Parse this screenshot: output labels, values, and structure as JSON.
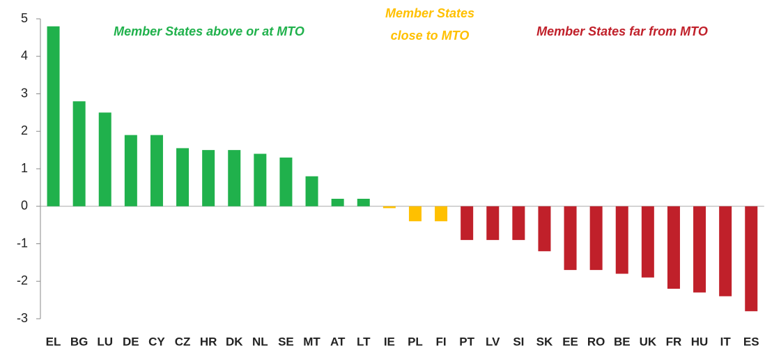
{
  "chart_data": {
    "type": "bar",
    "categories": [
      "EL",
      "BG",
      "LU",
      "DE",
      "CY",
      "CZ",
      "HR",
      "DK",
      "NL",
      "SE",
      "MT",
      "AT",
      "LT",
      "IE",
      "PL",
      "FI",
      "PT",
      "LV",
      "SI",
      "SK",
      "EE",
      "RO",
      "BE",
      "UK",
      "FR",
      "HU",
      "IT",
      "ES"
    ],
    "values": [
      4.8,
      2.8,
      2.5,
      1.9,
      1.9,
      1.55,
      1.5,
      1.5,
      1.4,
      1.3,
      0.8,
      0.2,
      0.2,
      -0.05,
      -0.4,
      -0.4,
      -0.9,
      -0.9,
      -0.9,
      -1.2,
      -1.7,
      -1.7,
      -1.8,
      -1.9,
      -2.2,
      -2.3,
      -2.4,
      -2.8
    ],
    "colors": [
      "#20b14c",
      "#20b14c",
      "#20b14c",
      "#20b14c",
      "#20b14c",
      "#20b14c",
      "#20b14c",
      "#20b14c",
      "#20b14c",
      "#20b14c",
      "#20b14c",
      "#20b14c",
      "#20b14c",
      "#ffc000",
      "#ffc000",
      "#ffc000",
      "#c0202a",
      "#c0202a",
      "#c0202a",
      "#c0202a",
      "#c0202a",
      "#c0202a",
      "#c0202a",
      "#c0202a",
      "#c0202a",
      "#c0202a",
      "#c0202a",
      "#c0202a"
    ],
    "ylim": [
      -3,
      5
    ],
    "yticks": [
      -3,
      -2,
      -1,
      0,
      1,
      2,
      3,
      4,
      5
    ],
    "annotations": [
      {
        "lines": [
          "Member  States above or at MTO"
        ],
        "color": "#20b14c"
      },
      {
        "lines": [
          "Member  States",
          "close  to MTO"
        ],
        "color": "#ffc000"
      },
      {
        "lines": [
          "Member  States far from MTO"
        ],
        "color": "#c0202a"
      }
    ]
  }
}
